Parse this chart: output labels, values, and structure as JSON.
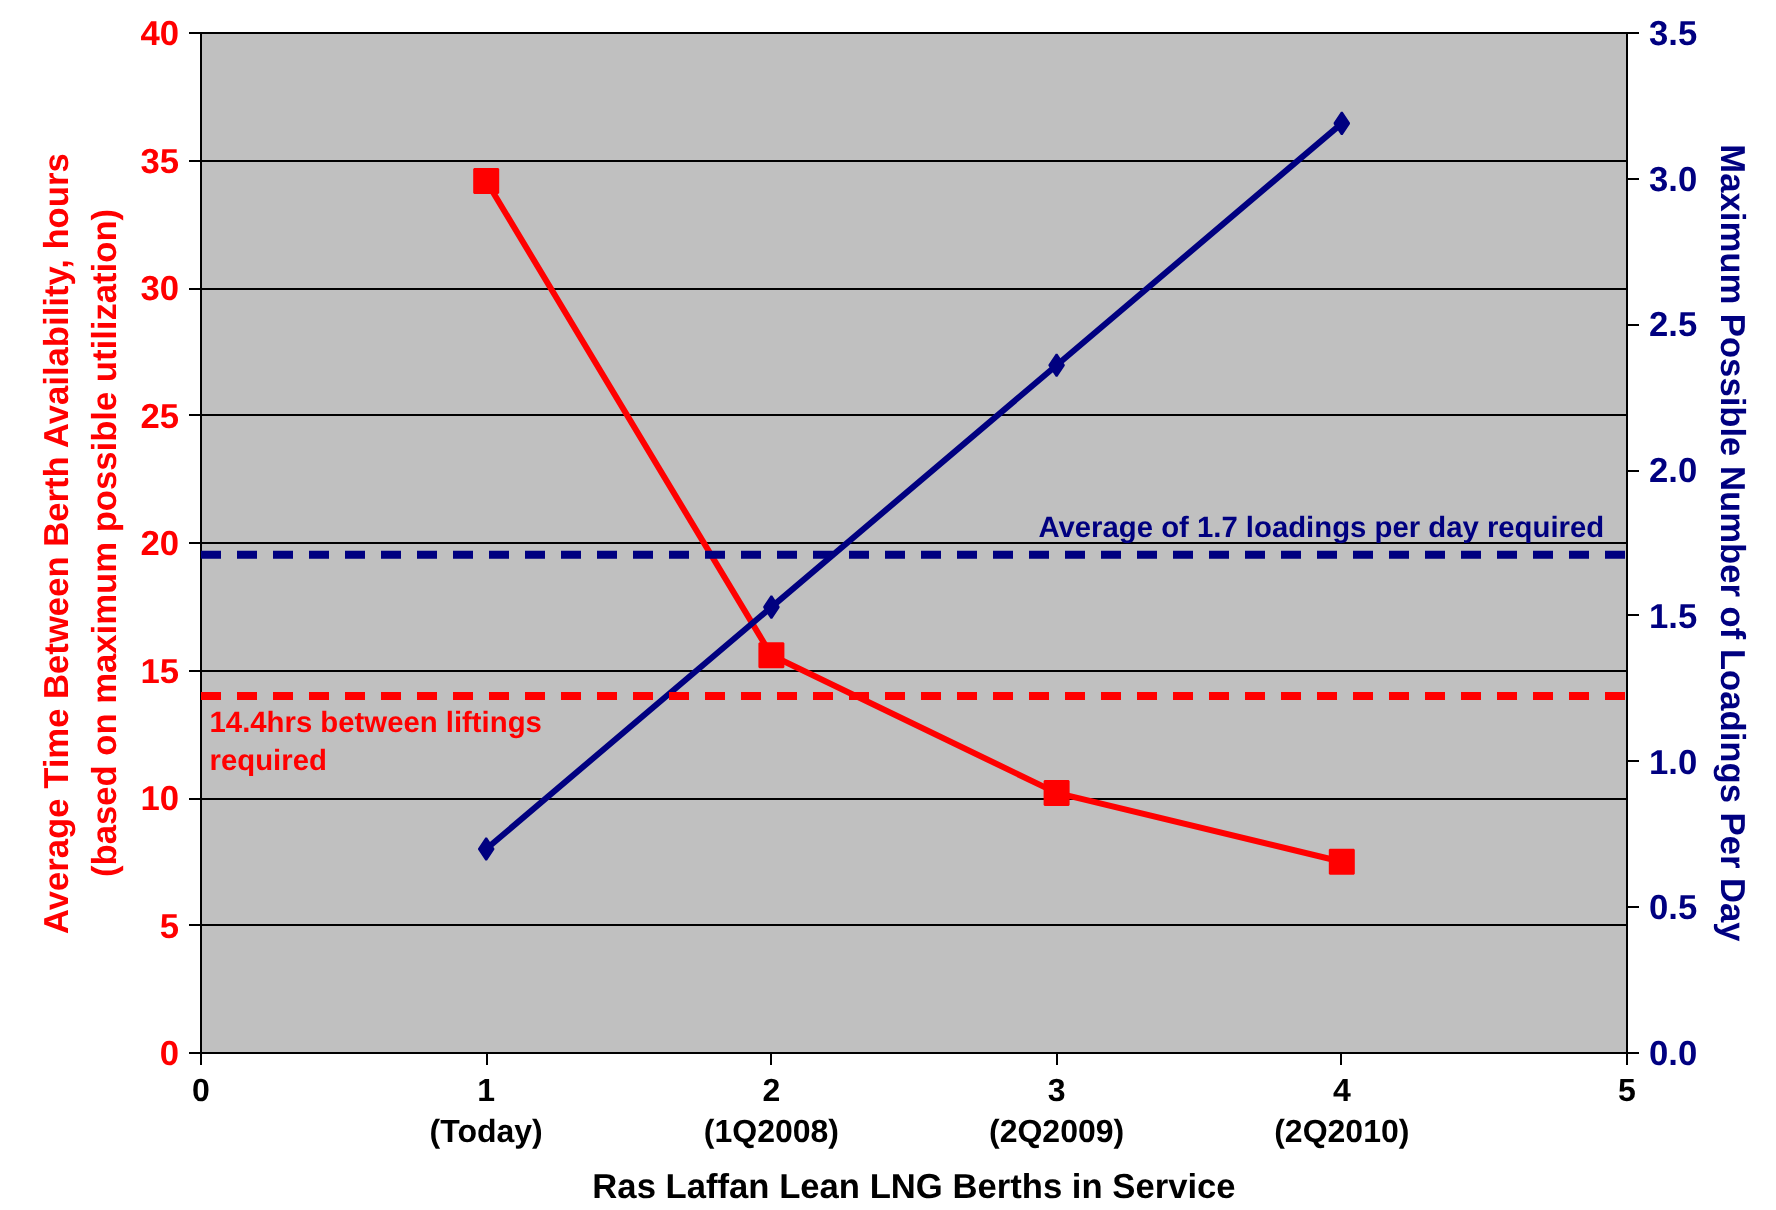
{
  "chart_data": {
    "type": "line",
    "xlabel": "Ras Laffan Lean LNG Berths in Service",
    "ylabel": "Average Time Between Berth Availability, hours\n(based on maximum possible utilization)",
    "y2label": "Maximum Possible Number of Loadings Per Day",
    "x": [
      1,
      2,
      3,
      4
    ],
    "series": [
      {
        "color": "#ff0000",
        "marker": "square",
        "values": [
          34.2,
          15.6,
          10.2,
          7.5
        ]
      },
      {
        "color": "#000080",
        "marker": "diamond",
        "axis": "y2",
        "values": [
          0.7,
          1.53,
          2.36,
          3.19
        ]
      }
    ],
    "xlim": [
      0,
      5
    ],
    "xticks": [
      0,
      {
        "value": 1,
        "label": "1\n(Today)"
      },
      {
        "value": 2,
        "label": "2\n(1Q2008)"
      },
      {
        "value": 3,
        "label": "3\n(2Q2009)"
      },
      {
        "value": 4,
        "label": "4\n(2Q2010)"
      },
      5
    ],
    "ylim": [
      0,
      40
    ],
    "yticks": [
      0,
      5,
      10,
      15,
      20,
      25,
      30,
      35,
      40
    ],
    "y2lim": [
      0,
      3.5
    ],
    "y2ticks": [
      {
        "value": 0,
        "label": "0.0"
      },
      0.5,
      {
        "value": 1,
        "label": "1.0"
      },
      1.5,
      {
        "value": 2,
        "label": "2.0"
      },
      2.5,
      {
        "value": 3,
        "label": "3.0"
      },
      3.5
    ],
    "ref_lines": [
      {
        "axis": "y2",
        "value": 1.71,
        "label": "Average of 1.7 loadings per day required",
        "color": "#000080",
        "line_style": "dashed"
      },
      {
        "axis": "y",
        "value": 14.0,
        "label": "14.4hrs between liftings\nrequired",
        "color": "#ff0000",
        "line_style": "dashed"
      }
    ],
    "grid": "y",
    "line_style": "solid"
  }
}
